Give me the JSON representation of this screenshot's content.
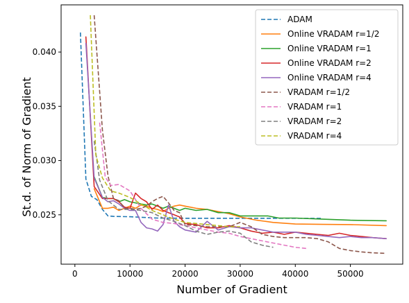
{
  "chart_data": {
    "type": "line",
    "title": "",
    "xlabel": "Number of Gradient",
    "ylabel": "St.d. of Norm of Gradient",
    "xlim": [
      -2500,
      59500
    ],
    "ylim": [
      0.02045,
      0.04435
    ],
    "xticks": [
      0,
      10000,
      20000,
      30000,
      40000,
      50000
    ],
    "xtick_labels": [
      "0",
      "10000",
      "20000",
      "30000",
      "40000",
      "50000"
    ],
    "yticks": [
      0.025,
      0.03,
      0.035,
      0.04
    ],
    "ytick_labels": [
      "0.025",
      "0.030",
      "0.035",
      "0.040"
    ],
    "grid": false,
    "legend_position": "top-right",
    "series": [
      {
        "name": "ADAM",
        "color": "#1f77b4",
        "dashed": true,
        "x": [
          1000,
          2000,
          3000,
          4000,
          5000,
          6000,
          7000,
          10000,
          15000,
          20000,
          25000,
          30000,
          35000,
          40000,
          45000
        ],
        "y": [
          0.0418,
          0.0283,
          0.0267,
          0.0264,
          0.0255,
          0.0249,
          0.02485,
          0.02482,
          0.0247,
          0.02468,
          0.02468,
          0.02468,
          0.02468,
          0.02468,
          0.02467
        ]
      },
      {
        "name": "Online VRADAM r=1/2",
        "color": "#ff7f0e",
        "dashed": false,
        "x": [
          3500,
          5000,
          6000,
          7000,
          8000,
          9000,
          10000,
          11000,
          12000,
          13000,
          14000,
          15000,
          16000,
          17000,
          18000,
          19000,
          20000,
          22000,
          24000,
          26000,
          28000,
          30000,
          33000,
          36000,
          40000,
          45000,
          50000,
          56500
        ],
        "y": [
          0.0274,
          0.0256,
          0.0256,
          0.0257,
          0.0254,
          0.0256,
          0.0258,
          0.0256,
          0.0259,
          0.0258,
          0.0256,
          0.0255,
          0.0253,
          0.0256,
          0.0258,
          0.0259,
          0.0258,
          0.0256,
          0.0255,
          0.0253,
          0.0251,
          0.0248,
          0.0245,
          0.0243,
          0.02415,
          0.02412,
          0.0241,
          0.024
        ]
      },
      {
        "name": "Online VRADAM r=1",
        "color": "#2ca02c",
        "dashed": false,
        "x": [
          3500,
          5000,
          6000,
          7000,
          8000,
          9000,
          10000,
          11000,
          12000,
          13000,
          14000,
          15000,
          16000,
          17000,
          18000,
          19000,
          20000,
          22000,
          24000,
          26000,
          28000,
          30000,
          32000,
          35000,
          37000,
          40000,
          45000,
          50000,
          56500
        ],
        "y": [
          0.0285,
          0.0266,
          0.0265,
          0.0265,
          0.0262,
          0.0264,
          0.0262,
          0.0261,
          0.026,
          0.0259,
          0.026,
          0.0258,
          0.0256,
          0.0258,
          0.0256,
          0.0254,
          0.0256,
          0.0254,
          0.0255,
          0.0252,
          0.0252,
          0.0249,
          0.0249,
          0.0249,
          0.0247,
          0.0247,
          0.0246,
          0.0245,
          0.02445
        ]
      },
      {
        "name": "Online VRADAM r=2",
        "color": "#d62728",
        "dashed": false,
        "x": [
          2000,
          3500,
          5000,
          6000,
          7000,
          8000,
          9000,
          10000,
          11000,
          12000,
          13000,
          14000,
          15000,
          16000,
          17000,
          18000,
          19000,
          20000,
          22000,
          24000,
          26000,
          28000,
          30000,
          32000,
          34000,
          36000,
          38000,
          40000,
          42000,
          44000,
          46000,
          48000,
          50000,
          52000,
          54000,
          56500
        ],
        "y": [
          0.0414,
          0.0276,
          0.0265,
          0.0265,
          0.0265,
          0.0262,
          0.0257,
          0.0256,
          0.027,
          0.0265,
          0.0262,
          0.0255,
          0.0259,
          0.0254,
          0.0252,
          0.025,
          0.0248,
          0.0242,
          0.0241,
          0.0238,
          0.0238,
          0.024,
          0.0238,
          0.0235,
          0.0233,
          0.0234,
          0.0232,
          0.0234,
          0.0233,
          0.0232,
          0.0231,
          0.0233,
          0.0231,
          0.023,
          0.0229,
          0.0228
        ]
      },
      {
        "name": "Online VRADAM r=4",
        "color": "#9467bd",
        "dashed": false,
        "x": [
          2000,
          3500,
          5000,
          6000,
          7000,
          8000,
          9000,
          10000,
          11000,
          12000,
          13000,
          14000,
          15000,
          16000,
          17000,
          18000,
          19000,
          20000,
          22000,
          24000,
          26000,
          28000,
          30000,
          32000,
          34000,
          36000,
          38000,
          40000,
          42000,
          44000,
          46000,
          48000,
          50000,
          52000,
          54000,
          56500
        ],
        "y": [
          0.0408,
          0.0284,
          0.0266,
          0.0262,
          0.0263,
          0.026,
          0.0256,
          0.0254,
          0.0254,
          0.0243,
          0.0238,
          0.0237,
          0.0235,
          0.0241,
          0.0259,
          0.0244,
          0.0239,
          0.0236,
          0.0234,
          0.0244,
          0.0236,
          0.0239,
          0.0238,
          0.0238,
          0.0236,
          0.0234,
          0.0234,
          0.0234,
          0.0232,
          0.0231,
          0.023,
          0.0229,
          0.023,
          0.0229,
          0.0229,
          0.0228
        ]
      },
      {
        "name": "VRADAM r=1/2",
        "color": "#8c564b",
        "dashed": true,
        "x": [
          3500,
          5000,
          6000,
          7000,
          8000,
          9000,
          10000,
          11000,
          12000,
          13000,
          14000,
          15000,
          16000,
          17000,
          18000,
          19000,
          20000,
          22000,
          24000,
          26000,
          28000,
          30000,
          32000,
          34000,
          36000,
          38000,
          40000,
          42000,
          44000,
          46000,
          48000,
          50000,
          52000,
          54000,
          56500
        ],
        "y": [
          0.0434,
          0.0328,
          0.0286,
          0.0265,
          0.0263,
          0.0256,
          0.0256,
          0.0255,
          0.0256,
          0.0258,
          0.0262,
          0.0265,
          0.0267,
          0.0261,
          0.0254,
          0.0252,
          0.0241,
          0.024,
          0.0239,
          0.0239,
          0.0239,
          0.0243,
          0.0239,
          0.0232,
          0.023,
          0.0229,
          0.0229,
          0.0229,
          0.0228,
          0.0225,
          0.0219,
          0.0217,
          0.02158,
          0.0215,
          0.02145
        ]
      },
      {
        "name": "VRADAM r=1",
        "color": "#e377c2",
        "dashed": true,
        "x": [
          4500,
          5500,
          6500,
          8000,
          10000,
          12000,
          14000,
          16000,
          18000,
          20000,
          22000,
          24000,
          26000,
          28000,
          30000,
          32000,
          34000,
          36000,
          38000,
          40000,
          42000
        ],
        "y": [
          0.0335,
          0.0285,
          0.0277,
          0.0278,
          0.0272,
          0.0256,
          0.0246,
          0.0243,
          0.0242,
          0.024,
          0.0238,
          0.0236,
          0.0234,
          0.0233,
          0.023,
          0.0228,
          0.0226,
          0.0224,
          0.0222,
          0.022,
          0.0219
        ]
      },
      {
        "name": "VRADAM r=2",
        "color": "#7f7f7f",
        "dashed": true,
        "x": [
          3500,
          4500,
          6000,
          8000,
          10000,
          12000,
          14000,
          16000,
          18000,
          20000,
          22000,
          24000,
          26000,
          28000,
          30000,
          32000,
          34000,
          36000
        ],
        "y": [
          0.0318,
          0.0282,
          0.0263,
          0.0255,
          0.0255,
          0.0254,
          0.0252,
          0.0247,
          0.0244,
          0.024,
          0.0235,
          0.0232,
          0.0234,
          0.0235,
          0.0233,
          0.0225,
          0.0222,
          0.022
        ]
      },
      {
        "name": "VRADAM r=4",
        "color": "#bcbd22",
        "dashed": true,
        "x": [
          2800,
          3800,
          5000,
          6500,
          8000,
          10000,
          12000,
          14000,
          16000,
          18000,
          20000,
          22000,
          24000,
          26000,
          28000,
          30000
        ],
        "y": [
          0.0434,
          0.0305,
          0.0284,
          0.0272,
          0.027,
          0.0266,
          0.026,
          0.0254,
          0.025,
          0.0246,
          0.0243,
          0.0242,
          0.0241,
          0.024,
          0.0239,
          0.0239
        ]
      }
    ]
  }
}
